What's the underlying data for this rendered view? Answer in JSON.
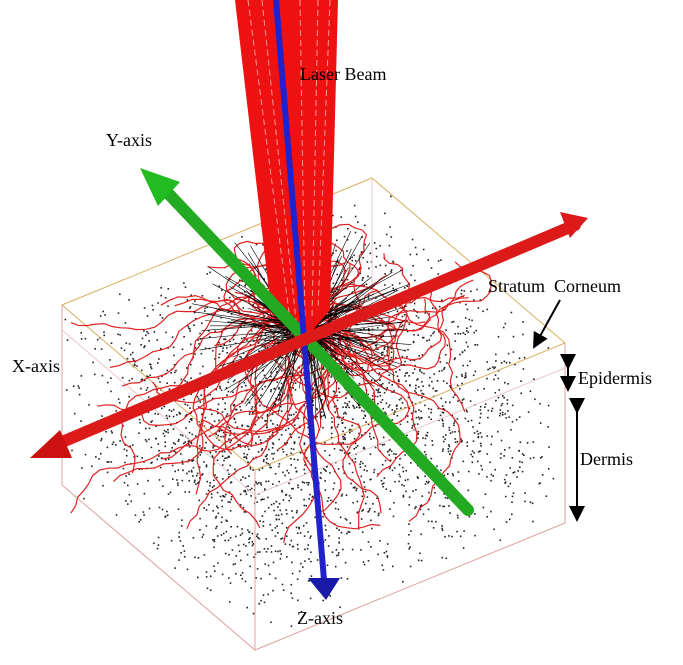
{
  "labels": {
    "laser_beam": "Laser Beam",
    "y_axis": "Y-axis",
    "stratum_corneum": "Stratum  Corneum",
    "epidermis": "Epidermis",
    "x_axis": "X-axis",
    "dermis": "Dermis",
    "z_axis": "Z-axis"
  }
}
